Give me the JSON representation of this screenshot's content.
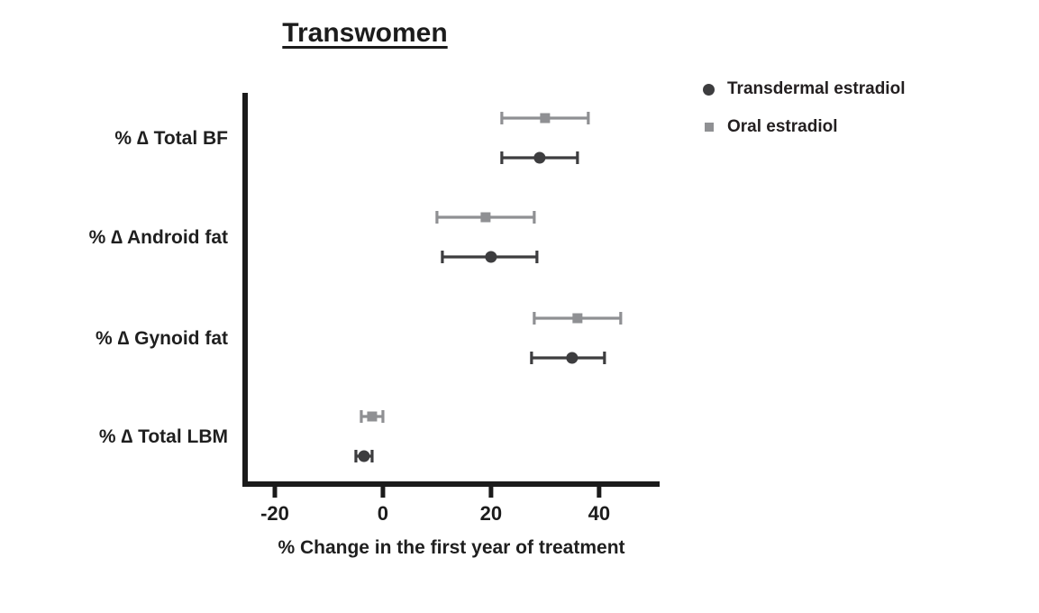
{
  "title": "Transwomen",
  "x_axis_label": "% Change in the first year of treatment",
  "chart_data": {
    "type": "scatter",
    "subtype": "horizontal-dot-plot-with-error-bars",
    "title": "Transwomen",
    "xlabel": "% Change in the first year of treatment",
    "ylabel": "",
    "grid": false,
    "legend_position": "top-right",
    "xticks": [
      -20,
      0,
      20,
      40
    ],
    "xlim": [
      -25.5,
      51.2
    ],
    "categories": [
      "% ∆ Total BF",
      "% ∆ Android fat",
      "% ∆ Gynoid fat",
      "% ∆ Total LBM"
    ],
    "series": [
      {
        "name": "Transdermal estradiol",
        "marker": "circle",
        "color": "#3d3d3f",
        "values": [
          29,
          20,
          35,
          -3.5
        ],
        "ci_low": [
          22,
          11,
          27.5,
          -5
        ],
        "ci_high": [
          36,
          28.5,
          41,
          -2
        ]
      },
      {
        "name": "Oral estradiol",
        "marker": "square",
        "color": "#8f9093",
        "values": [
          30,
          19,
          36,
          -2
        ],
        "ci_low": [
          22,
          10,
          28,
          -4
        ],
        "ci_high": [
          38,
          28,
          44,
          0
        ]
      }
    ]
  }
}
